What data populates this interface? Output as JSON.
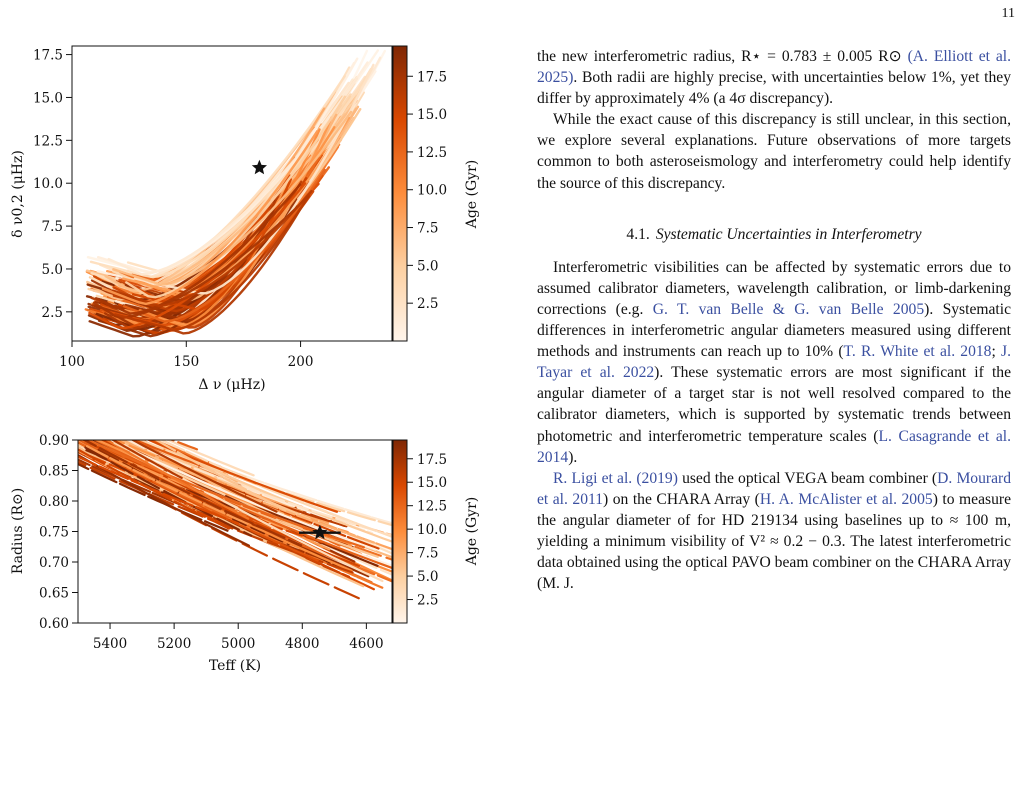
{
  "page_number": "11",
  "figure": {
    "colorbar_label": "Age (Gyr)",
    "colorbar_ticks": [
      "2.5",
      "5.0",
      "7.5",
      "10.0",
      "12.5",
      "15.0",
      "17.5"
    ],
    "colormap": [
      "#fff5eb",
      "#fdd0a2",
      "#fd8d3c",
      "#d94801",
      "#7f2704"
    ],
    "top_panel": {
      "xlabel": "Δ ν (μHz)",
      "ylabel": "δ ν0,2 (μHz)",
      "xticks": [
        "100",
        "150",
        "200"
      ],
      "yticks": [
        "2.5",
        "5.0",
        "7.5",
        "10.0",
        "12.5",
        "15.0",
        "17.5"
      ]
    },
    "bottom_panel": {
      "xlabel": "Teff (K)",
      "ylabel": "Radius (R⊙)",
      "xticks": [
        "5400",
        "5200",
        "5000",
        "4800",
        "4600"
      ],
      "yticks": [
        "0.60",
        "0.65",
        "0.70",
        "0.75",
        "0.80",
        "0.85",
        "0.90"
      ]
    }
  },
  "chart_data": [
    {
      "type": "line",
      "xlabel": "Δ ν (μHz)",
      "ylabel": "δ ν0,2 (μHz)",
      "xlim": [
        100,
        240
      ],
      "ylim": [
        0.8,
        18.0
      ],
      "colorbar": {
        "label": "Age (Gyr)",
        "range": [
          0,
          19.5
        ]
      },
      "marker": {
        "symbol": "star",
        "x": 182,
        "y": 10.9
      }
    },
    {
      "type": "line",
      "xlabel": "Teff (K)",
      "ylabel": "Radius (R⊙)",
      "xlim": [
        5500,
        4520
      ],
      "ylim": [
        0.6,
        0.9
      ],
      "colorbar": {
        "label": "Age (Gyr)",
        "range": [
          0,
          19.5
        ]
      },
      "marker": {
        "symbol": "star",
        "x": 4745,
        "y": 0.748,
        "xerr": 65,
        "yerr": 0.004
      }
    }
  ],
  "text": {
    "p1": [
      {
        "t": "the new interferometric radius, R⋆ = 0.783 ± 0.005 R⊙ "
      },
      {
        "t": "(A. Elliott et al. 2025)",
        "c": 1
      },
      {
        "t": ". Both radii are highly precise, with uncertainties below 1%, yet they differ by approximately 4% (a 4σ discrepancy)."
      }
    ],
    "p2": [
      {
        "t": "While the exact cause of this discrepancy is still unclear, in this section, we explore several explanations. Future observations of more targets common to both asteroseismology and interferometry could help identify the source of this discrepancy."
      }
    ],
    "section_num": "4.1.",
    "section_title": "Systematic Uncertainties in Interferometry",
    "p3": [
      {
        "t": "Interferometric visibilities can be affected by systematic errors due to assumed calibrator diameters, wavelength calibration, or limb-darkening corrections (e.g. "
      },
      {
        "t": "G. T. van Belle & G. van Belle 2005",
        "c": 1
      },
      {
        "t": "). Systematic differences in interferometric angular diameters measured using different methods and instruments can reach up to 10% ("
      },
      {
        "t": "T. R. White et al. 2018",
        "c": 1
      },
      {
        "t": "; "
      },
      {
        "t": "J. Tayar et al. 2022",
        "c": 1
      },
      {
        "t": "). These systematic errors are most significant if the angular diameter of a target star is not well resolved compared to the calibrator diameters, which is supported by systematic trends between photometric and interferometric temperature scales ("
      },
      {
        "t": "L. Casagrande et al. 2014",
        "c": 1
      },
      {
        "t": ")."
      }
    ],
    "p4": [
      {
        "t": "R. Ligi et al. (2019)",
        "c": 1
      },
      {
        "t": " used the optical VEGA beam combiner ("
      },
      {
        "t": "D. Mourard et al. 2011",
        "c": 1
      },
      {
        "t": ") on the CHARA Array ("
      },
      {
        "t": "H. A. McAlister et al. 2005",
        "c": 1
      },
      {
        "t": ") to measure the angular diameter of for HD 219134 using baselines up to ≈ 100 m, yielding a minimum visibility of V² ≈ 0.2 − 0.3. The latest interferometric data obtained using the optical PAVO beam combiner on the CHARA Array (M. J."
      }
    ]
  }
}
